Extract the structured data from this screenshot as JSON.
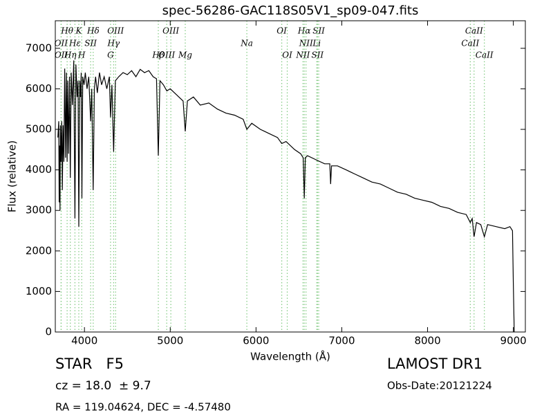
{
  "chart_data": {
    "type": "line",
    "title": "spec-56286-GAC118S05V1_sp09-047.fits",
    "x_label": "Wavelength (Å)",
    "y_label": "Flux (relative)",
    "color": "#000000",
    "line_color": "#7fc97f",
    "grid": false,
    "xlim": [
      3660,
      9140
    ],
    "ylim": [
      0,
      7680
    ],
    "xticks": [
      4000,
      5000,
      6000,
      7000,
      8000,
      9000
    ],
    "yticks": [
      0,
      1000,
      2000,
      3000,
      4000,
      5000,
      6000,
      7000
    ],
    "x": [
      3690,
      3700,
      3705,
      3710,
      3715,
      3720,
      3727,
      3735,
      3742,
      3750,
      3760,
      3770,
      3780,
      3790,
      3798,
      3805,
      3815,
      3825,
      3835,
      3845,
      3860,
      3875,
      3889,
      3900,
      3915,
      3925,
      3934,
      3945,
      3955,
      3962,
      3970,
      3980,
      3995,
      4010,
      4030,
      4050,
      4072,
      4085,
      4102,
      4115,
      4130,
      4150,
      4175,
      4200,
      4230,
      4260,
      4290,
      4304,
      4320,
      4340,
      4360,
      4400,
      4450,
      4500,
      4550,
      4600,
      4650,
      4700,
      4750,
      4800,
      4840,
      4861,
      4880,
      4920,
      4960,
      5000,
      5050,
      5100,
      5150,
      5175,
      5200,
      5270,
      5350,
      5450,
      5550,
      5650,
      5750,
      5850,
      5893,
      5950,
      6050,
      6150,
      6250,
      6300,
      6350,
      6450,
      6520,
      6550,
      6563,
      6575,
      6600,
      6700,
      6800,
      6860,
      6870,
      6880,
      6950,
      7050,
      7150,
      7250,
      7350,
      7450,
      7550,
      7650,
      7750,
      7850,
      7950,
      8050,
      8150,
      8250,
      8350,
      8450,
      8498,
      8520,
      8542,
      8570,
      8620,
      8662,
      8700,
      8800,
      8900,
      8960,
      8990,
      9000,
      9010
    ],
    "values": [
      4800,
      5200,
      3200,
      4600,
      3000,
      5100,
      4200,
      5200,
      3500,
      5100,
      4200,
      6500,
      4300,
      6400,
      4200,
      6200,
      4400,
      6300,
      3800,
      6400,
      5600,
      6700,
      2800,
      6600,
      5800,
      6200,
      2600,
      6200,
      5800,
      6400,
      3300,
      6300,
      6100,
      6400,
      6000,
      6300,
      5200,
      6000,
      3500,
      6000,
      6300,
      5900,
      6400,
      6100,
      6300,
      6000,
      6300,
      5300,
      6100,
      4450,
      6200,
      6300,
      6400,
      6350,
      6450,
      6300,
      6480,
      6400,
      6450,
      6300,
      6250,
      4350,
      6200,
      6100,
      5950,
      6000,
      5900,
      5800,
      5700,
      4950,
      5700,
      5800,
      5600,
      5650,
      5500,
      5400,
      5350,
      5250,
      5000,
      5150,
      5000,
      4900,
      4800,
      4650,
      4700,
      4500,
      4400,
      4300,
      3300,
      4300,
      4350,
      4250,
      4150,
      4150,
      3650,
      4100,
      4100,
      4000,
      3900,
      3800,
      3700,
      3650,
      3550,
      3450,
      3400,
      3300,
      3250,
      3200,
      3100,
      3050,
      2950,
      2900,
      2700,
      2800,
      2350,
      2700,
      2650,
      2350,
      2650,
      2600,
      2550,
      2600,
      2500,
      1200,
      0
    ],
    "spectral_lines": [
      [
        {
          "label": "Hθ",
          "wavelength": 3798
        },
        {
          "label": "K",
          "wavelength": 3934
        },
        {
          "label": "Hδ",
          "wavelength": 4102
        },
        {
          "label": "OIII",
          "wavelength": 4363
        },
        {
          "label": "OIII",
          "wavelength": 5007
        },
        {
          "label": "OI",
          "wavelength": 6300
        },
        {
          "label": "Hα",
          "wavelength": 6563
        },
        {
          "label": "SII",
          "wavelength": 6731
        },
        {
          "label": "CaII",
          "wavelength": 8542
        }
      ],
      [
        {
          "label": "OII",
          "wavelength": 3727
        },
        {
          "label": "Hε",
          "wavelength": 3889
        },
        {
          "label": "SII",
          "wavelength": 4072
        },
        {
          "label": "Hγ",
          "wavelength": 4340
        },
        {
          "label": "Na",
          "wavelength": 5893
        },
        {
          "label": "NII",
          "wavelength": 6583
        },
        {
          "label": "Li",
          "wavelength": 6708
        },
        {
          "label": "CaII",
          "wavelength": 8498
        }
      ],
      [
        {
          "label": "OII",
          "wavelength": 3729
        },
        {
          "label": "Hη",
          "wavelength": 3835
        },
        {
          "label": "H",
          "wavelength": 3968
        },
        {
          "label": "G",
          "wavelength": 4304
        },
        {
          "label": "Hβ",
          "wavelength": 4861
        },
        {
          "label": "OIII",
          "wavelength": 4959
        },
        {
          "label": "Mg",
          "wavelength": 5175
        },
        {
          "label": "OI",
          "wavelength": 6364
        },
        {
          "label": "NII",
          "wavelength": 6548
        },
        {
          "label": "SII",
          "wavelength": 6717
        },
        {
          "label": "CaII",
          "wavelength": 8662
        }
      ]
    ],
    "object_class": "STAR   F5",
    "redshift": "cz = 18.0  ± 9.7",
    "coordinates": "RA = 119.04624, DEC = -4.57480",
    "survey": "LAMOST DR1",
    "obs_date": "Obs-Date:20121224"
  }
}
